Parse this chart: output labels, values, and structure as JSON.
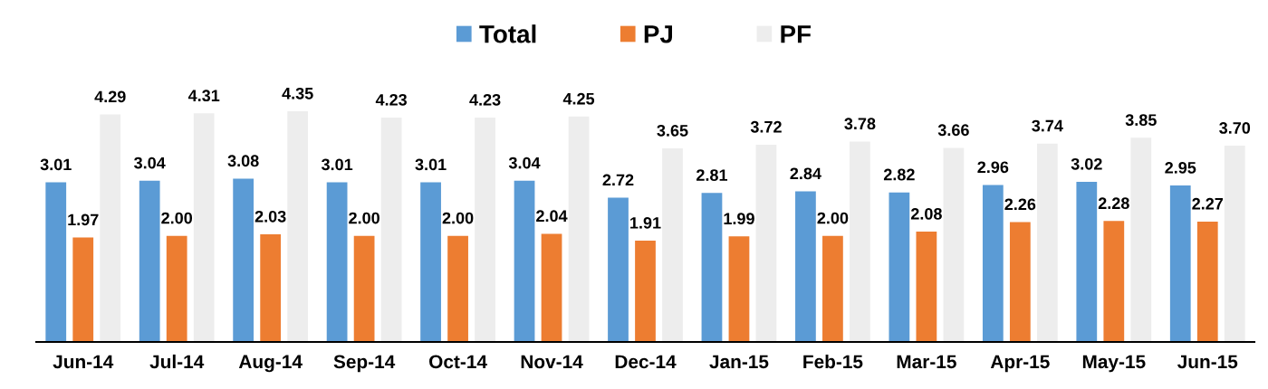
{
  "chart_data": {
    "type": "bar",
    "categories": [
      "Jun-14",
      "Jul-14",
      "Aug-14",
      "Sep-14",
      "Oct-14",
      "Nov-14",
      "Dec-14",
      "Jan-15",
      "Feb-15",
      "Mar-15",
      "Apr-15",
      "May-15",
      "Jun-15"
    ],
    "series": [
      {
        "name": "Total",
        "color": "#5b9bd5",
        "values": [
          3.01,
          3.04,
          3.08,
          3.01,
          3.01,
          3.04,
          2.72,
          2.81,
          2.84,
          2.82,
          2.96,
          3.02,
          2.95
        ],
        "value_labels": [
          "3.01",
          "3.04",
          "3.08",
          "3.01",
          "3.01",
          "3.04",
          "2.72",
          "2.81",
          "2.84",
          "2.82",
          "2.96",
          "3.02",
          "2.95"
        ]
      },
      {
        "name": "PJ",
        "color": "#ed7d31",
        "values": [
          1.97,
          2.0,
          2.03,
          2.0,
          2.0,
          2.04,
          1.91,
          1.99,
          2.0,
          2.08,
          2.26,
          2.28,
          2.27
        ],
        "value_labels": [
          "1.97",
          "2.00",
          "2.03",
          "2.00",
          "2.00",
          "2.04",
          "1.91",
          "1.99",
          "2.00",
          "2.08",
          "2.26",
          "2.28",
          "2.27"
        ]
      },
      {
        "name": "PF",
        "color": "#ededed",
        "values": [
          4.29,
          4.31,
          4.35,
          4.23,
          4.23,
          4.25,
          3.65,
          3.72,
          3.78,
          3.66,
          3.74,
          3.85,
          3.7
        ],
        "value_labels": [
          "4.29",
          "4.31",
          "4.35",
          "4.23",
          "4.23",
          "4.25",
          "3.65",
          "3.72",
          "3.78",
          "3.66",
          "3.74",
          "3.85",
          "3.70"
        ]
      }
    ],
    "legend": "top",
    "tick_labels": "x"
  }
}
